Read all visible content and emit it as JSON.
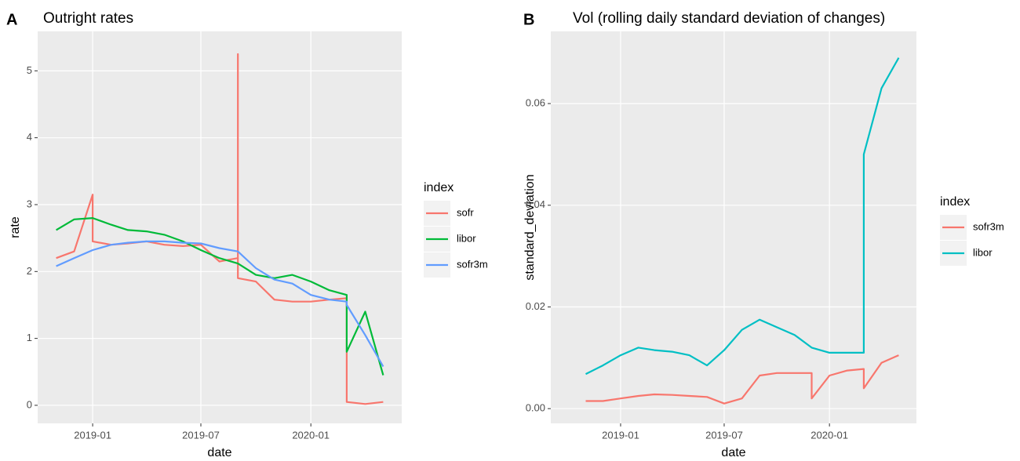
{
  "chart_data": [
    {
      "type": "line",
      "panel_label": "A",
      "title": "Outright rates",
      "xlabel": "date",
      "ylabel": "rate",
      "legend_title": "index",
      "legend": "right",
      "grid": true,
      "x": [
        "2018-11",
        "2018-12",
        "2019-01",
        "2019-01",
        "2019-02",
        "2019-03",
        "2019-04",
        "2019-05",
        "2019-06",
        "2019-07",
        "2019-08",
        "2019-09",
        "2019-09",
        "2019-09",
        "2019-10",
        "2019-11",
        "2019-12",
        "2020-01",
        "2020-02",
        "2020-03",
        "2020-03",
        "2020-04",
        "2020-05"
      ],
      "series": [
        {
          "name": "sofr",
          "color": "#f8766d",
          "values": [
            2.2,
            2.3,
            3.15,
            2.45,
            2.4,
            2.42,
            2.45,
            2.4,
            2.38,
            2.4,
            2.15,
            2.2,
            5.25,
            1.9,
            1.85,
            1.58,
            1.55,
            1.55,
            1.58,
            1.6,
            0.05,
            0.02,
            0.05
          ]
        },
        {
          "name": "libor",
          "color": "#00ba38",
          "values": [
            2.62,
            2.78,
            2.8,
            2.8,
            2.7,
            2.62,
            2.6,
            2.55,
            2.45,
            2.32,
            2.2,
            2.12,
            2.12,
            2.12,
            1.95,
            1.9,
            1.95,
            1.85,
            1.72,
            1.65,
            0.8,
            1.4,
            0.45
          ]
        },
        {
          "name": "sofr3m",
          "color": "#619cff",
          "values": [
            2.08,
            2.2,
            2.32,
            2.32,
            2.4,
            2.43,
            2.45,
            2.45,
            2.43,
            2.42,
            2.35,
            2.3,
            2.3,
            2.3,
            2.05,
            1.88,
            1.82,
            1.65,
            1.58,
            1.55,
            1.5,
            1.05,
            0.58
          ]
        }
      ],
      "xlim": [
        "2018-10",
        "2020-06"
      ],
      "xticks": [
        "2019-01",
        "2019-07",
        "2020-01"
      ],
      "ylim": [
        -0.27,
        5.59
      ],
      "yticks": [
        0,
        1,
        2,
        3,
        4,
        5
      ]
    },
    {
      "type": "line",
      "panel_label": "B",
      "title": "Vol (rolling daily standard deviation of changes)",
      "xlabel": "date",
      "ylabel": "standard_deviation",
      "legend_title": "index",
      "legend": "right",
      "grid": true,
      "x": [
        "2018-11",
        "2018-12",
        "2019-01",
        "2019-02",
        "2019-03",
        "2019-04",
        "2019-05",
        "2019-06",
        "2019-07",
        "2019-08",
        "2019-09",
        "2019-10",
        "2019-11",
        "2019-12",
        "2019-12",
        "2020-01",
        "2020-02",
        "2020-03",
        "2020-03",
        "2020-04",
        "2020-05"
      ],
      "series": [
        {
          "name": "sofr3m",
          "color": "#f8766d",
          "values": [
            0.0015,
            0.0015,
            0.002,
            0.0025,
            0.0028,
            0.0027,
            0.0025,
            0.0023,
            0.001,
            0.002,
            0.0065,
            0.007,
            0.007,
            0.007,
            0.002,
            0.0065,
            0.0075,
            0.0078,
            0.004,
            0.009,
            0.0105
          ]
        },
        {
          "name": "libor",
          "color": "#00bfc4",
          "values": [
            0.0068,
            0.0085,
            0.0105,
            0.012,
            0.0115,
            0.0112,
            0.0105,
            0.0085,
            0.0115,
            0.0155,
            0.0175,
            0.016,
            0.0145,
            0.012,
            0.012,
            0.011,
            0.011,
            0.011,
            0.05,
            0.063,
            0.069
          ]
        }
      ],
      "xlim": [
        "2018-09",
        "2020-06"
      ],
      "xticks": [
        "2019-01",
        "2019-07",
        "2020-01"
      ],
      "ylim": [
        -0.0029,
        0.0742
      ],
      "yticks": [
        {
          "value": 0,
          "label": "0.00"
        },
        0.02,
        0.04,
        0.06
      ]
    }
  ]
}
